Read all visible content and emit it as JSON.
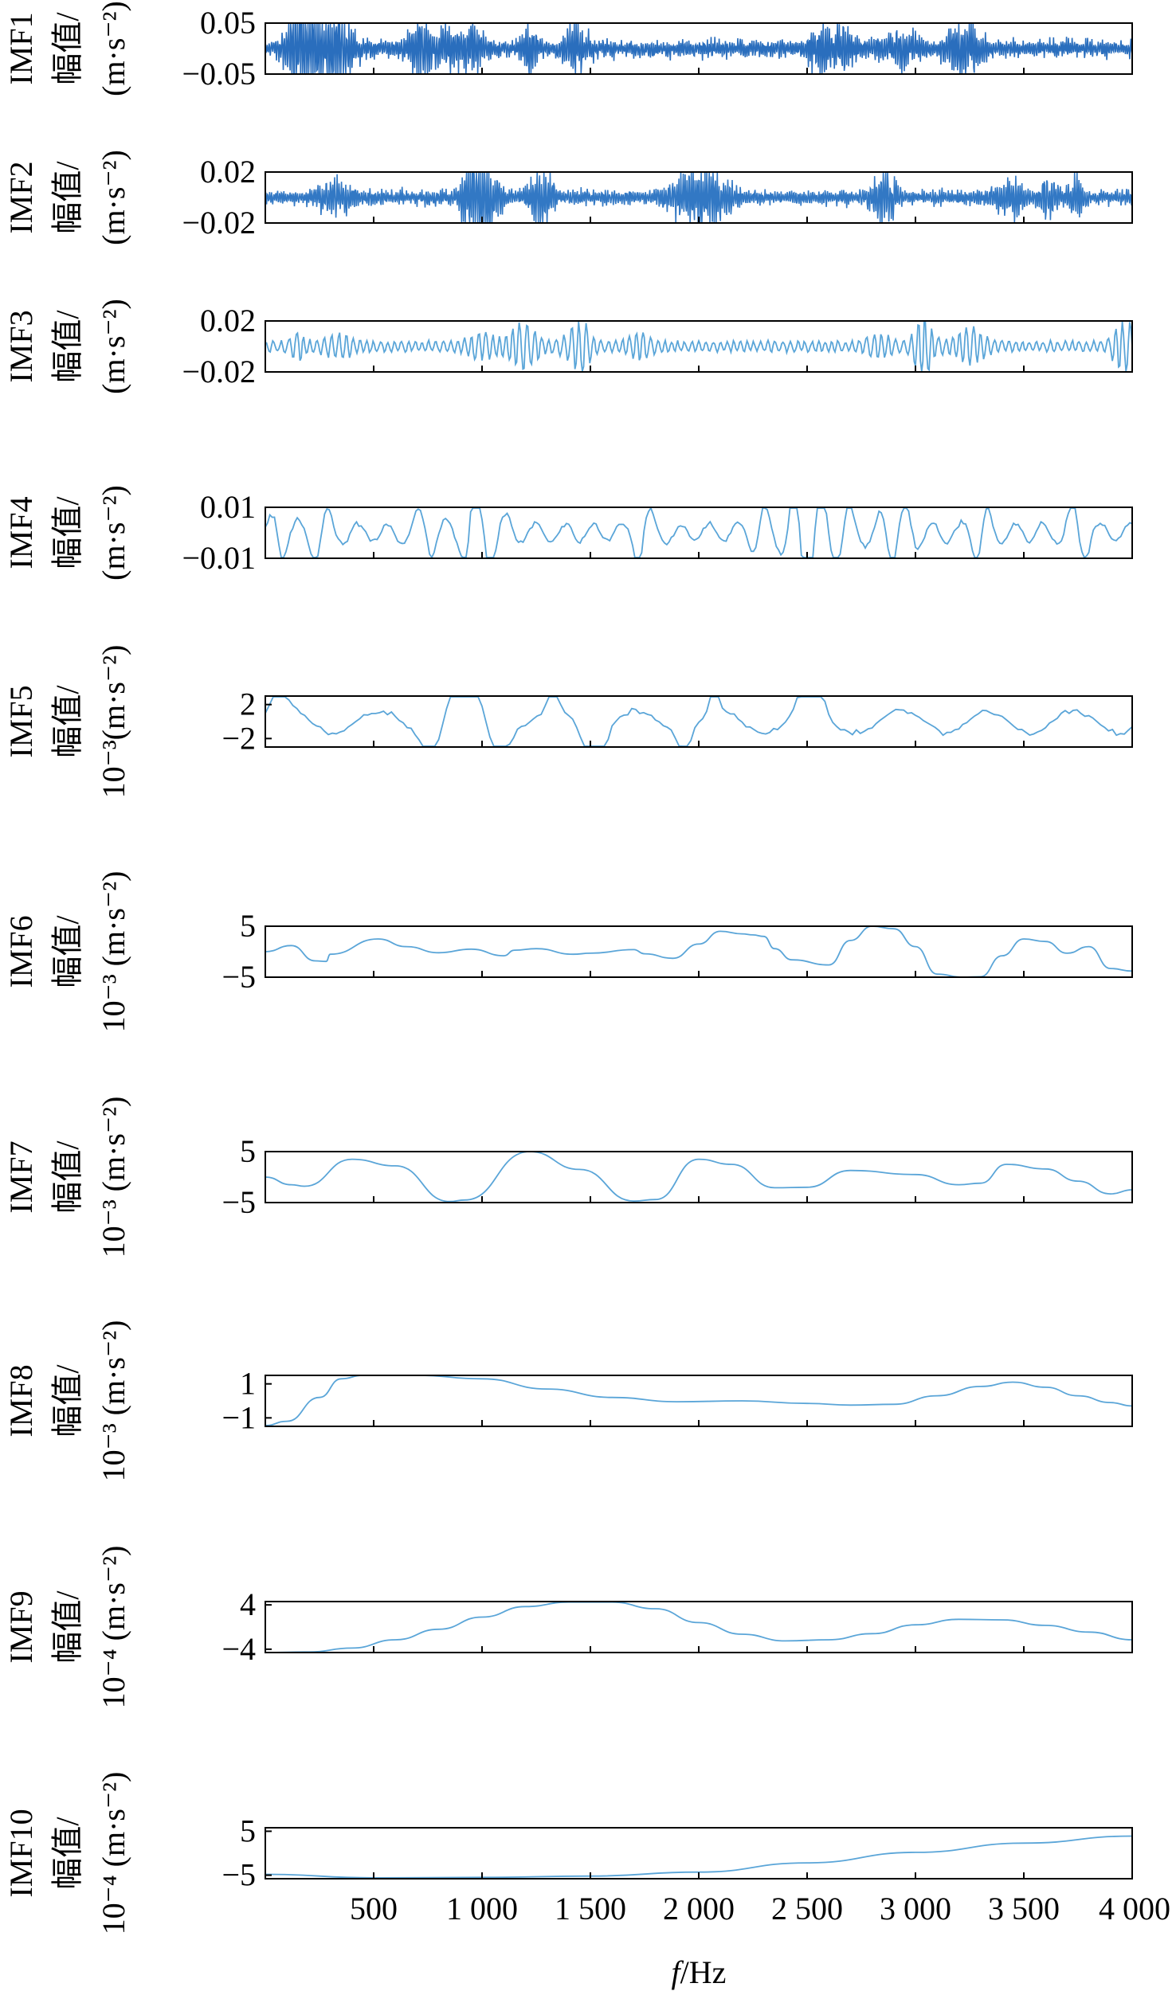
{
  "chart_data": {
    "type": "line",
    "layout": "stacked-subplots",
    "xlabel": "f/Hz",
    "xlabel_italic_part": "f",
    "xlabel_rest": "/Hz",
    "xlim": [
      0,
      4000
    ],
    "xticks": [
      500,
      1000,
      1500,
      2000,
      2500,
      3000,
      3500,
      4000
    ],
    "xtick_labels": [
      "500",
      "1 000",
      "1 500",
      "2 000",
      "2 500",
      "3 000",
      "3 500",
      "4 000"
    ],
    "grid": false,
    "panels": [
      {
        "name": "IMF1",
        "ylabel": [
          "IMF1",
          "幅值/",
          "(m·s⁻²)"
        ],
        "ylim": [
          -0.05,
          0.05
        ],
        "yticks": [
          0.05,
          -0.05
        ],
        "ytick_labels": [
          "0.05",
          "−0.05"
        ],
        "color": "#2a6ebd",
        "kind": "noise",
        "amplitude": 0.35,
        "seed": 11
      },
      {
        "name": "IMF2",
        "ylabel": [
          "IMF2",
          "幅值/",
          "(m·s⁻²)"
        ],
        "ylim": [
          -0.02,
          0.02
        ],
        "yticks": [
          0.02,
          -0.02
        ],
        "ytick_labels": [
          "0.02",
          "−0.02"
        ],
        "color": "#3278c4",
        "kind": "noise",
        "amplitude": 0.3,
        "seed": 23
      },
      {
        "name": "IMF3",
        "ylabel": [
          "IMF3",
          "幅值/",
          "(m·s⁻²)"
        ],
        "ylim": [
          -0.02,
          0.02
        ],
        "yticks": [
          0.02,
          -0.02
        ],
        "ytick_labels": [
          "0.02",
          "−0.02"
        ],
        "color": "#5aa5d8",
        "kind": "oscillation",
        "amplitude": 0.25,
        "seed": 37
      },
      {
        "name": "IMF4",
        "ylabel": [
          "IMF4",
          "幅值/",
          "(m·s⁻²)"
        ],
        "ylim": [
          -0.01,
          0.01
        ],
        "yticks": [
          0.01,
          -0.01
        ],
        "ytick_labels": [
          "0.01",
          "−0.01"
        ],
        "color": "#5aa5d8",
        "kind": "oscillation",
        "amplitude": 0.45,
        "seed": 41
      },
      {
        "name": "IMF5",
        "ylabel": [
          "IMF5",
          "幅值/",
          "10⁻³(m·s⁻²)"
        ],
        "ylim": [
          -3,
          3
        ],
        "yticks": [
          2,
          -2
        ],
        "ytick_labels": [
          "2",
          "−2"
        ],
        "color": "#5aa5d8",
        "kind": "oscillation",
        "amplitude": 0.55,
        "seed": 53
      },
      {
        "name": "IMF6",
        "ylabel": [
          "IMF6",
          "幅值/",
          "10⁻³ (m·s⁻²)"
        ],
        "ylim": [
          -5,
          5
        ],
        "yticks": [
          5,
          -5
        ],
        "ytick_labels": [
          "5",
          "−5"
        ],
        "color": "#5aa5d8",
        "kind": "points",
        "x": [
          0,
          120,
          230,
          280,
          300,
          520,
          650,
          800,
          950,
          1100,
          1150,
          1250,
          1420,
          1500,
          1700,
          1750,
          1880,
          2000,
          2100,
          2200,
          2250,
          2300,
          2350,
          2430,
          2600,
          2700,
          2800,
          2900,
          3000,
          3100,
          3220,
          3300,
          3400,
          3500,
          3600,
          3700,
          3800,
          3900,
          4000
        ],
        "y": [
          0,
          1.2,
          -1.8,
          -1.9,
          -0.5,
          2.5,
          1.0,
          -0.2,
          0.5,
          -0.8,
          0.3,
          0.6,
          -0.5,
          -0.3,
          0.4,
          -0.4,
          -1.3,
          1.5,
          4.0,
          3.5,
          3.3,
          3.0,
          0.6,
          -1.6,
          -2.6,
          2.2,
          5.0,
          4.5,
          1.0,
          -4.4,
          -5.0,
          -4.9,
          -0.8,
          2.5,
          2.0,
          -0.3,
          1.0,
          -3.3,
          -3.8
        ]
      },
      {
        "name": "IMF7",
        "ylabel": [
          "IMF7",
          "幅值/",
          "10⁻³ (m·s⁻²)"
        ],
        "ylim": [
          -5,
          5
        ],
        "yticks": [
          5,
          -5
        ],
        "ytick_labels": [
          "5",
          "−5"
        ],
        "color": "#5aa5d8",
        "kind": "points",
        "x": [
          0,
          120,
          180,
          400,
          600,
          850,
          920,
          1220,
          1450,
          1700,
          1800,
          2000,
          2150,
          2350,
          2500,
          2700,
          3000,
          3200,
          3300,
          3420,
          3600,
          3750,
          3900,
          4000
        ],
        "y": [
          0,
          -1.5,
          -1.8,
          3.5,
          2.2,
          -4.8,
          -4.5,
          5.0,
          1.5,
          -4.7,
          -4.4,
          3.5,
          2.5,
          -2.1,
          -2.0,
          1.3,
          0.5,
          -1.5,
          -1.2,
          2.5,
          1.6,
          -0.8,
          -3.3,
          -2.5
        ]
      },
      {
        "name": "IMF8",
        "ylabel": [
          "IMF8",
          "幅值/",
          "10⁻³ (m·s⁻²)"
        ],
        "ylim": [
          -1.5,
          1.5
        ],
        "yticks": [
          1,
          -1
        ],
        "ytick_labels": [
          "1",
          "−1"
        ],
        "color": "#5aa5d8",
        "kind": "points",
        "x": [
          0,
          100,
          250,
          350,
          450,
          700,
          1000,
          1300,
          1600,
          1900,
          2200,
          2500,
          2700,
          2900,
          3100,
          3300,
          3450,
          3600,
          3750,
          3900,
          4000
        ],
        "y": [
          -1.45,
          -1.2,
          0.2,
          1.3,
          1.5,
          1.5,
          1.3,
          0.7,
          0.2,
          -0.05,
          0.0,
          -0.15,
          -0.25,
          -0.2,
          0.3,
          0.85,
          1.1,
          0.8,
          0.3,
          -0.1,
          -0.3
        ]
      },
      {
        "name": "IMF9",
        "ylabel": [
          "IMF9",
          "幅值/",
          "10⁻⁴ (m·s⁻²)"
        ],
        "ylim": [
          -4.6,
          4.6
        ],
        "yticks": [
          4,
          -4
        ],
        "ytick_labels": [
          "4",
          "−4"
        ],
        "color": "#5aa5d8",
        "kind": "points",
        "x": [
          0,
          200,
          400,
          600,
          800,
          1000,
          1200,
          1400,
          1600,
          1800,
          2000,
          2200,
          2400,
          2600,
          2800,
          3000,
          3200,
          3400,
          3600,
          3800,
          4000
        ],
        "y": [
          -4.6,
          -4.5,
          -3.8,
          -2.3,
          -0.4,
          1.8,
          3.7,
          4.5,
          4.5,
          3.3,
          0.8,
          -1.3,
          -2.5,
          -2.3,
          -1.2,
          0.4,
          1.4,
          1.3,
          0.3,
          -0.9,
          -2.3
        ]
      },
      {
        "name": "IMF10",
        "ylabel": [
          "IMF10",
          "幅值/",
          "10⁻⁴ (m·s⁻²)"
        ],
        "ylim": [
          -5.8,
          5.8
        ],
        "yticks": [
          5,
          -5
        ],
        "ytick_labels": [
          "5",
          "−5"
        ],
        "color": "#5aa5d8",
        "kind": "points",
        "x": [
          0,
          500,
          1000,
          1500,
          2000,
          2500,
          3000,
          3500,
          4000
        ],
        "y": [
          -4.8,
          -5.6,
          -5.5,
          -5.2,
          -4.3,
          -2.2,
          0.2,
          2.3,
          3.9
        ]
      }
    ]
  }
}
